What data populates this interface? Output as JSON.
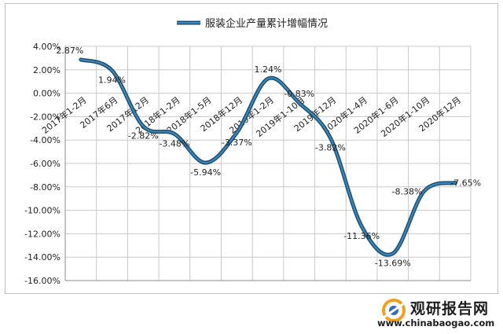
{
  "chart_data": {
    "type": "line",
    "title": "",
    "xlabel": "",
    "ylabel": "",
    "categories": [
      "2017年1-2月",
      "2017年6月",
      "2017年12月",
      "2018年1-2月",
      "2018年1-5月",
      "2018年12月",
      "2019年1-2月",
      "2019年1-10月",
      "2019年12月",
      "2020年1-4月",
      "2020年1-6月",
      "2020年1-10月",
      "2020年12月"
    ],
    "series": [
      {
        "name": "服装企业产量累计增幅情况",
        "values": [
          2.87,
          1.94,
          -2.82,
          -3.48,
          -5.94,
          -3.37,
          1.24,
          -0.83,
          -3.82,
          -11.36,
          -13.69,
          -8.38,
          -7.65
        ],
        "labels": [
          "2.87%",
          "1.94%",
          "-2.82%",
          "-3.48%",
          "-5.94%",
          "-3.37%",
          "1.24%",
          "-0.83%",
          "-3.82%",
          "-11.36%",
          "-13.69%",
          "-8.38%",
          "-7.65%"
        ],
        "color": "#2e6e99"
      }
    ],
    "ylim": [
      -16,
      4
    ],
    "yticks": [
      "4.00%",
      "2.00%",
      "0.00%",
      "-2.00%",
      "-4.00%",
      "-6.00%",
      "-8.00%",
      "-10.00%",
      "-12.00%",
      "-14.00%",
      "-16.00%"
    ],
    "grid": true,
    "legend": "top-center"
  },
  "watermark": {
    "name": "观研报告网",
    "url": "www.chinabaogao.com"
  },
  "colors": {
    "line_outer": "#1e4f72",
    "line_inner": "#3d88bb",
    "grid": "#c8c8c8",
    "axis": "#8c8c8c"
  }
}
